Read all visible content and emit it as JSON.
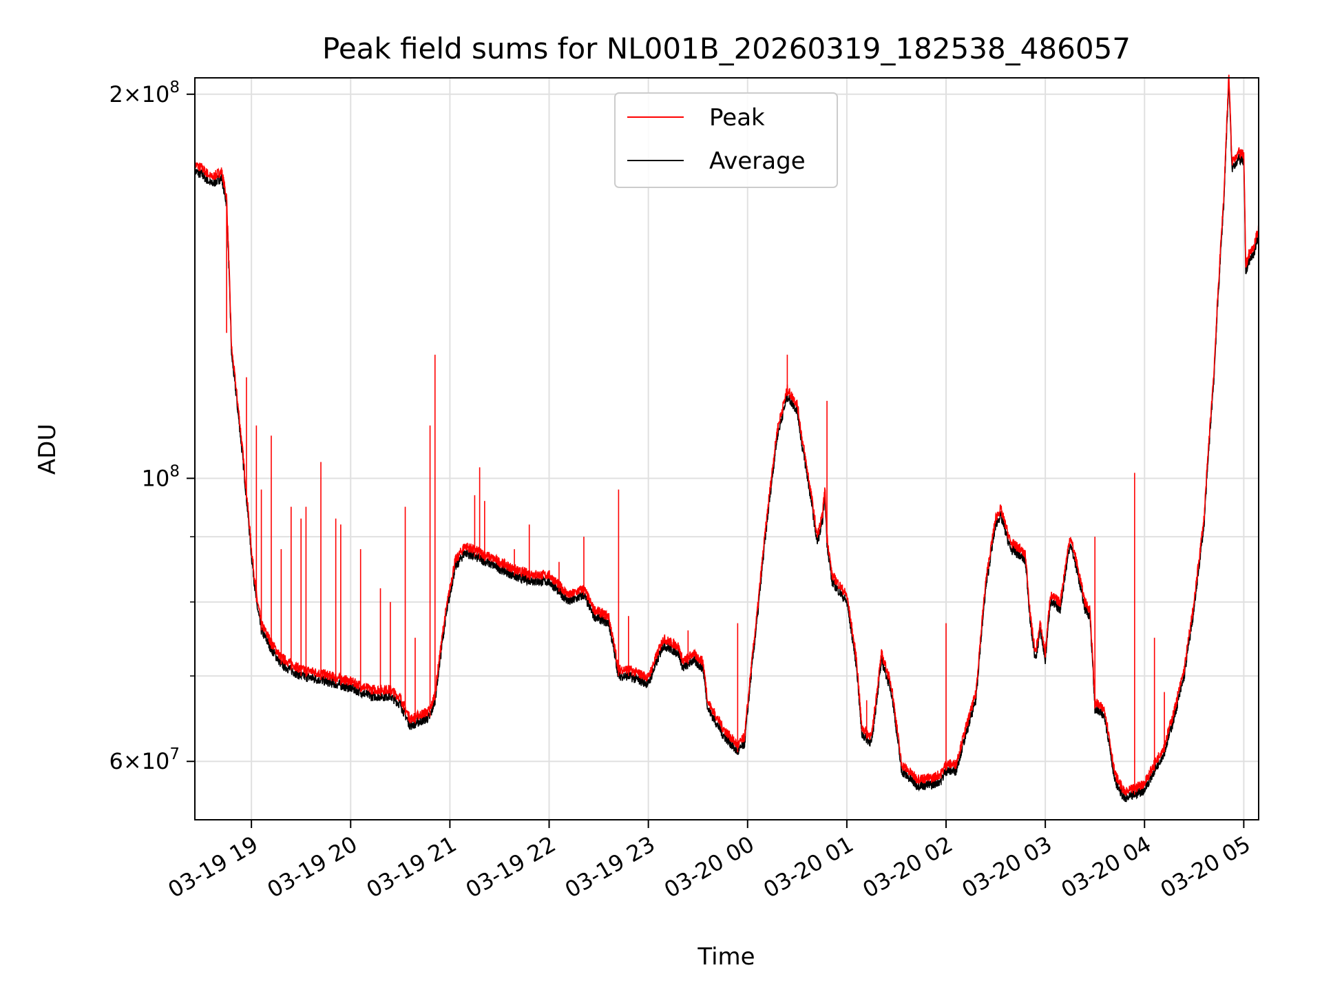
{
  "chart_data": {
    "type": "line",
    "title": "Peak field sums for NL001B_20260319_182538_486057",
    "xlabel": "Time",
    "ylabel": "ADU",
    "yscale": "log",
    "ylim": [
      54000000,
      206000000
    ],
    "xlim_hours": [
      18.43,
      29.15
    ],
    "grid": true,
    "legend_position": "top-center",
    "legend": [
      "Peak",
      "Average"
    ],
    "colors": {
      "peak": "#ff0000",
      "average": "#000000",
      "grid": "#e0e0e0"
    },
    "x_ticks": [
      {
        "h": 19,
        "label": "03-19 19"
      },
      {
        "h": 20,
        "label": "03-19 20"
      },
      {
        "h": 21,
        "label": "03-19 21"
      },
      {
        "h": 22,
        "label": "03-19 22"
      },
      {
        "h": 23,
        "label": "03-19 23"
      },
      {
        "h": 24,
        "label": "03-20 00"
      },
      {
        "h": 25,
        "label": "03-20 01"
      },
      {
        "h": 26,
        "label": "03-20 02"
      },
      {
        "h": 27,
        "label": "03-20 03"
      },
      {
        "h": 28,
        "label": "03-20 04"
      },
      {
        "h": 29,
        "label": "03-20 05"
      }
    ],
    "y_major_ticks": [
      {
        "v": 60000000,
        "mant": "6",
        "times": "×",
        "base": "10",
        "exp": "7"
      },
      {
        "v": 100000000,
        "mant": "",
        "times": "",
        "base": "10",
        "exp": "8"
      },
      {
        "v": 200000000,
        "mant": "2",
        "times": "×",
        "base": "10",
        "exp": "8"
      }
    ],
    "y_minor_ticks": [
      70000000,
      80000000,
      90000000
    ],
    "average_series": [
      [
        18.43,
        174
      ],
      [
        18.5,
        173
      ],
      [
        18.6,
        170
      ],
      [
        18.7,
        172
      ],
      [
        18.75,
        164
      ],
      [
        18.8,
        125
      ],
      [
        18.9,
        106
      ],
      [
        19.0,
        87
      ],
      [
        19.05,
        80
      ],
      [
        19.1,
        76
      ],
      [
        19.2,
        73.5
      ],
      [
        19.3,
        71.5
      ],
      [
        19.5,
        70
      ],
      [
        19.7,
        69.5
      ],
      [
        20.0,
        68.5
      ],
      [
        20.2,
        67.5
      ],
      [
        20.4,
        67.5
      ],
      [
        20.5,
        66.5
      ],
      [
        20.6,
        64
      ],
      [
        20.7,
        64.5
      ],
      [
        20.8,
        65
      ],
      [
        20.85,
        67
      ],
      [
        20.95,
        77
      ],
      [
        21.05,
        85
      ],
      [
        21.15,
        87.5
      ],
      [
        21.3,
        86.5
      ],
      [
        21.5,
        85
      ],
      [
        21.7,
        83.5
      ],
      [
        21.9,
        83
      ],
      [
        22.0,
        83
      ],
      [
        22.2,
        80
      ],
      [
        22.35,
        81
      ],
      [
        22.45,
        78
      ],
      [
        22.6,
        77
      ],
      [
        22.7,
        70
      ],
      [
        22.8,
        70
      ],
      [
        23.0,
        69
      ],
      [
        23.15,
        74
      ],
      [
        23.3,
        73
      ],
      [
        23.35,
        71
      ],
      [
        23.45,
        72
      ],
      [
        23.55,
        71
      ],
      [
        23.6,
        66
      ],
      [
        23.75,
        63
      ],
      [
        23.9,
        61
      ],
      [
        23.97,
        62
      ],
      [
        24.1,
        78
      ],
      [
        24.2,
        93
      ],
      [
        24.3,
        108
      ],
      [
        24.4,
        116
      ],
      [
        24.5,
        113
      ],
      [
        24.55,
        106
      ],
      [
        24.65,
        95
      ],
      [
        24.7,
        89
      ],
      [
        24.75,
        92
      ],
      [
        24.78,
        97
      ],
      [
        24.8,
        89
      ],
      [
        24.85,
        83
      ],
      [
        25.0,
        80
      ],
      [
        25.1,
        71
      ],
      [
        25.15,
        63
      ],
      [
        25.25,
        62
      ],
      [
        25.35,
        72
      ],
      [
        25.45,
        68
      ],
      [
        25.55,
        59
      ],
      [
        25.7,
        57.5
      ],
      [
        25.85,
        57.5
      ],
      [
        25.95,
        58
      ],
      [
        26.0,
        59
      ],
      [
        26.1,
        59
      ],
      [
        26.2,
        63
      ],
      [
        26.3,
        67
      ],
      [
        26.4,
        82
      ],
      [
        26.5,
        92
      ],
      [
        26.55,
        93.5
      ],
      [
        26.65,
        88
      ],
      [
        26.75,
        87
      ],
      [
        26.8,
        86
      ],
      [
        26.85,
        77
      ],
      [
        26.9,
        72
      ],
      [
        26.95,
        76
      ],
      [
        27.0,
        72
      ],
      [
        27.05,
        80
      ],
      [
        27.15,
        79
      ],
      [
        27.25,
        89
      ],
      [
        27.3,
        86
      ],
      [
        27.4,
        79
      ],
      [
        27.45,
        78
      ],
      [
        27.5,
        66
      ],
      [
        27.6,
        65
      ],
      [
        27.7,
        58
      ],
      [
        27.8,
        56
      ],
      [
        27.9,
        56.5
      ],
      [
        28.0,
        57
      ],
      [
        28.1,
        59
      ],
      [
        28.2,
        61
      ],
      [
        28.3,
        65
      ],
      [
        28.4,
        70
      ],
      [
        28.5,
        79
      ],
      [
        28.6,
        92
      ],
      [
        28.7,
        120
      ],
      [
        28.8,
        165
      ],
      [
        28.85,
        205
      ],
      [
        28.88,
        175
      ],
      [
        28.95,
        178
      ],
      [
        29.0,
        177
      ],
      [
        29.02,
        145
      ],
      [
        29.05,
        148
      ],
      [
        29.1,
        150
      ],
      [
        29.15,
        155
      ]
    ],
    "peak_spikes": [
      [
        18.75,
        130
      ],
      [
        18.95,
        120
      ],
      [
        19.05,
        110
      ],
      [
        19.1,
        98
      ],
      [
        19.2,
        108
      ],
      [
        19.3,
        88
      ],
      [
        19.4,
        95
      ],
      [
        19.5,
        93
      ],
      [
        19.55,
        95
      ],
      [
        19.7,
        103
      ],
      [
        19.85,
        93
      ],
      [
        19.9,
        92
      ],
      [
        20.1,
        88
      ],
      [
        20.3,
        82
      ],
      [
        20.4,
        80
      ],
      [
        20.55,
        95
      ],
      [
        20.65,
        75
      ],
      [
        20.8,
        110
      ],
      [
        20.85,
        125
      ],
      [
        21.25,
        97
      ],
      [
        21.3,
        102
      ],
      [
        21.35,
        96
      ],
      [
        21.65,
        88
      ],
      [
        21.8,
        92
      ],
      [
        22.1,
        86
      ],
      [
        22.35,
        90
      ],
      [
        22.7,
        98
      ],
      [
        22.8,
        78
      ],
      [
        23.4,
        76
      ],
      [
        23.9,
        77
      ],
      [
        24.4,
        125
      ],
      [
        24.8,
        115
      ],
      [
        25.2,
        67
      ],
      [
        26.0,
        77
      ],
      [
        27.5,
        90
      ],
      [
        27.9,
        101
      ],
      [
        28.1,
        75
      ],
      [
        28.2,
        68
      ]
    ]
  }
}
